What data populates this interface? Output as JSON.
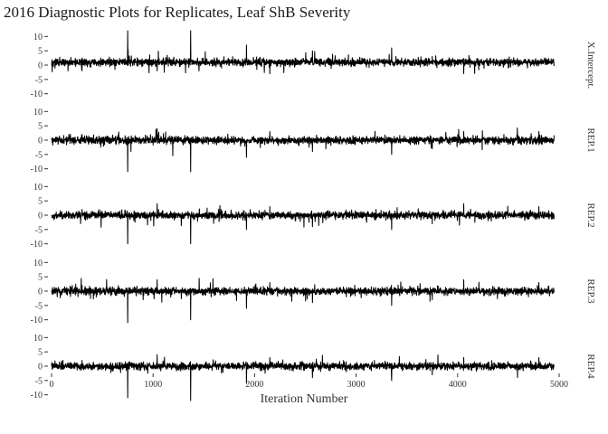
{
  "chart_data": {
    "type": "line",
    "title": "2016 Diagnostic Plots for Replicates, Leaf ShB Severity",
    "xlabel": "Iteration Number",
    "ylabel": "",
    "xlim": [
      0,
      5000
    ],
    "xticks": [
      0,
      1000,
      2000,
      3000,
      4000,
      5000
    ],
    "ylim": [
      -12,
      12
    ],
    "yticks": [
      10,
      5,
      0,
      -5,
      -10
    ],
    "ytick_labels": [
      "10",
      "5",
      "0",
      "-5",
      "-10"
    ],
    "grid": false,
    "legend": "none",
    "n_iterations": 4950,
    "line_color": "#000000",
    "panels": [
      {
        "name": "X.Intercept.",
        "baseline": 1,
        "noise": 0.65,
        "spikes": [
          [
            750,
            12
          ],
          [
            1370,
            12
          ],
          [
            1920,
            7
          ],
          [
            2570,
            5
          ],
          [
            3350,
            6
          ],
          [
            2150,
            -3
          ],
          [
            4060,
            -3
          ],
          [
            1040,
            -2
          ],
          [
            300,
            -2
          ],
          [
            3750,
            3
          ]
        ]
      },
      {
        "name": "REP.1",
        "baseline": 0,
        "noise": 0.65,
        "spikes": [
          [
            750,
            -11
          ],
          [
            1370,
            -11
          ],
          [
            1920,
            -6
          ],
          [
            2570,
            -4
          ],
          [
            3350,
            -5
          ],
          [
            2150,
            3
          ],
          [
            4060,
            3
          ],
          [
            1040,
            4
          ],
          [
            300,
            2
          ],
          [
            3750,
            -3
          ],
          [
            4800,
            3
          ]
        ]
      },
      {
        "name": "REP.2",
        "baseline": 0,
        "noise": 0.65,
        "spikes": [
          [
            750,
            -10
          ],
          [
            1370,
            -10
          ],
          [
            1920,
            -5
          ],
          [
            2570,
            -4
          ],
          [
            3350,
            -5
          ],
          [
            2150,
            3
          ],
          [
            4060,
            4
          ],
          [
            1040,
            4
          ],
          [
            300,
            2
          ],
          [
            3750,
            -3
          ],
          [
            4800,
            3
          ]
        ]
      },
      {
        "name": "REP.3",
        "baseline": 0,
        "noise": 0.65,
        "spikes": [
          [
            750,
            -11
          ],
          [
            1370,
            -10
          ],
          [
            1920,
            -6
          ],
          [
            2570,
            -4
          ],
          [
            3350,
            -5
          ],
          [
            2150,
            3
          ],
          [
            4060,
            4
          ],
          [
            1040,
            4
          ],
          [
            300,
            2
          ],
          [
            3750,
            -3
          ],
          [
            4800,
            3
          ]
        ]
      },
      {
        "name": "REP.4",
        "baseline": 0,
        "noise": 0.65,
        "spikes": [
          [
            750,
            -11
          ],
          [
            1370,
            -12
          ],
          [
            1920,
            -6
          ],
          [
            2570,
            -4
          ],
          [
            3350,
            -5
          ],
          [
            2150,
            3
          ],
          [
            4060,
            3
          ],
          [
            1040,
            4
          ],
          [
            300,
            2
          ],
          [
            3750,
            -3
          ],
          [
            4800,
            3
          ]
        ]
      }
    ]
  }
}
